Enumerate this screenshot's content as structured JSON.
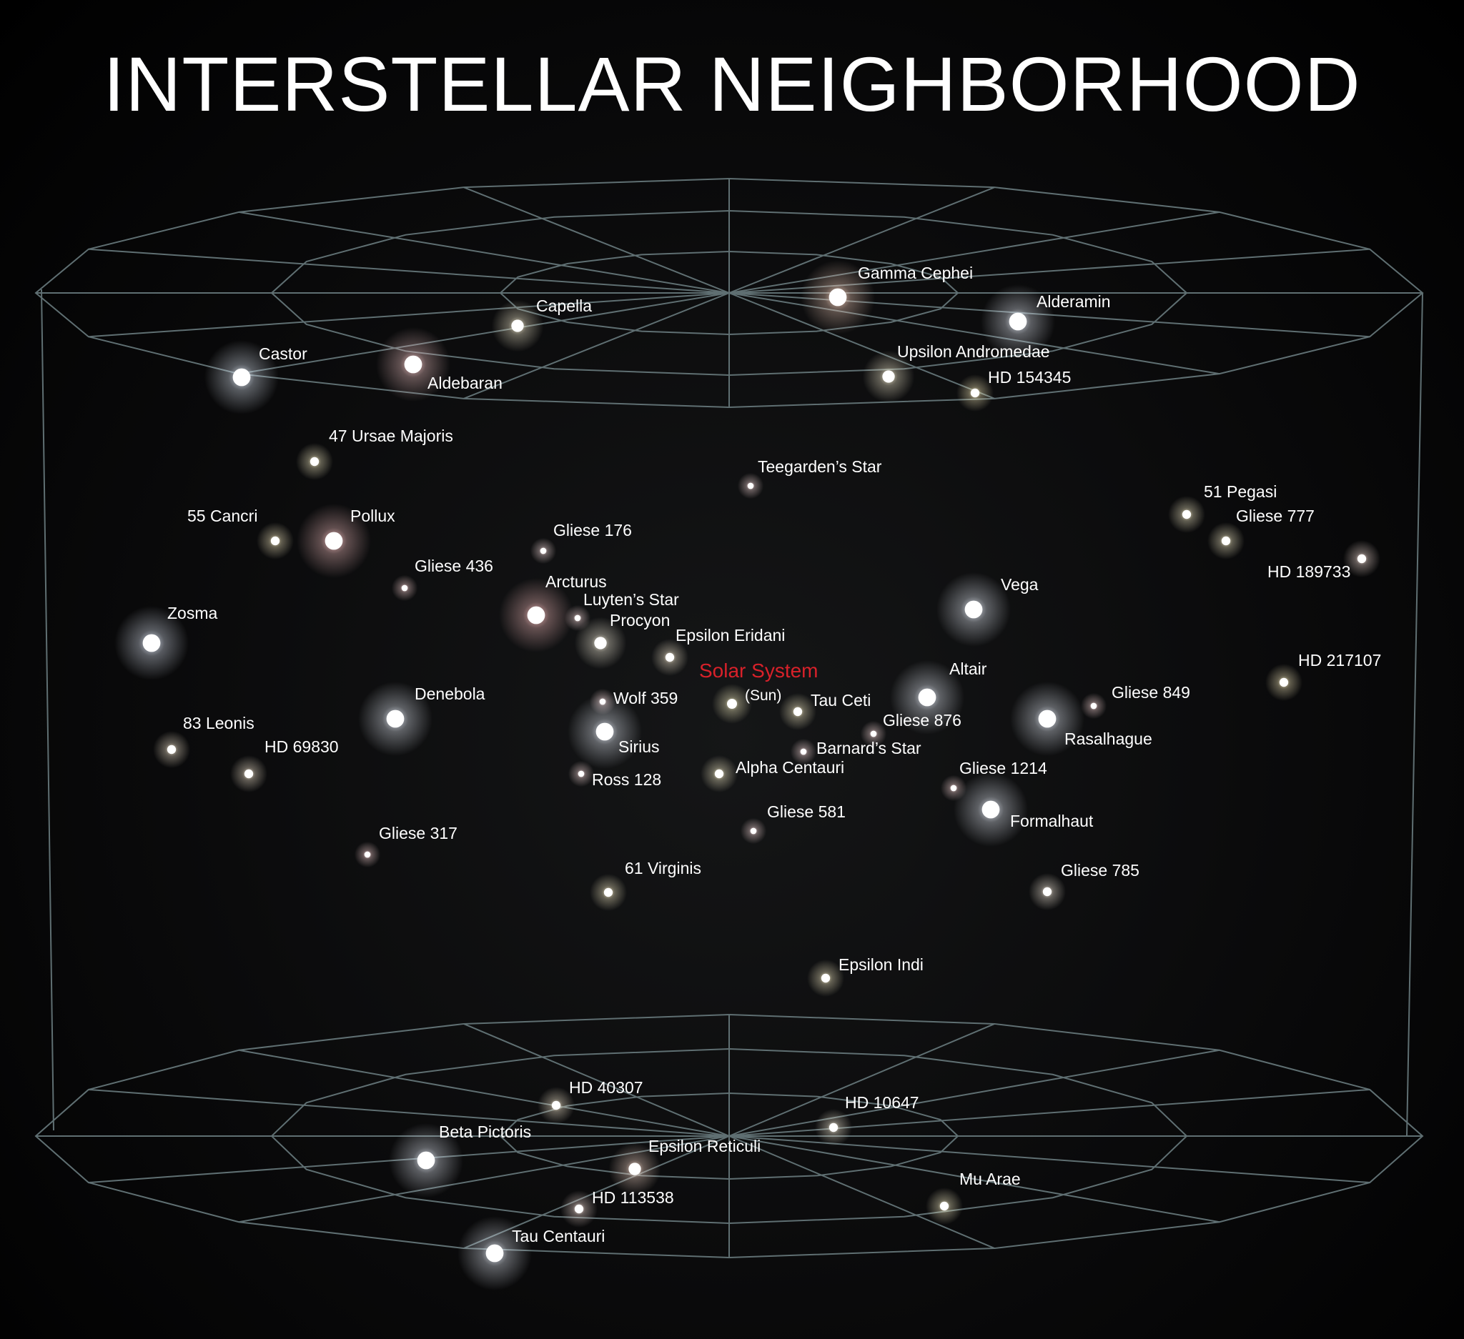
{
  "title": "INTERSTELLAR NEIGHBORHOOD",
  "colors": {
    "background": "#000000",
    "grid": "#5f6f72",
    "label": "#ffffff",
    "solar_system": "#d8212a"
  },
  "solar_system": {
    "label": "Solar System",
    "sublabel": "(Sun)",
    "color": "#fff7c8"
  },
  "stars": [
    {
      "id": "gamma-cephei",
      "name": "Gamma Cephei",
      "color": "#ffd8c4",
      "size": "large"
    },
    {
      "id": "capella",
      "name": "Capella",
      "color": "#fff6d8",
      "size": "medium"
    },
    {
      "id": "alderamin",
      "name": "Alderamin",
      "color": "#eef4ff",
      "size": "large"
    },
    {
      "id": "castor",
      "name": "Castor",
      "color": "#e8f2ff",
      "size": "large"
    },
    {
      "id": "aldebaran",
      "name": "Aldebaran",
      "color": "#ffd0d0",
      "size": "large"
    },
    {
      "id": "upsilon-andromedae",
      "name": "Upsilon Andromedae",
      "color": "#fff6d8",
      "size": "medium"
    },
    {
      "id": "hd-154345",
      "name": "HD 154345",
      "color": "#fff2c0",
      "size": "small"
    },
    {
      "id": "47-ursae-majoris",
      "name": "47 Ursae Majoris",
      "color": "#fff6cc",
      "size": "small"
    },
    {
      "id": "teegardens-star",
      "name": "Teegarden’s Star",
      "color": "#ffe0e0",
      "size": "tiny"
    },
    {
      "id": "51-pegasi",
      "name": "51 Pegasi",
      "color": "#fff6d0",
      "size": "small"
    },
    {
      "id": "gliese-777",
      "name": "Gliese 777",
      "color": "#fff6d0",
      "size": "small"
    },
    {
      "id": "hd-189733",
      "name": "HD 189733",
      "color": "#ffe8e0",
      "size": "small"
    },
    {
      "id": "55-cancri",
      "name": "55 Cancri",
      "color": "#fff2c8",
      "size": "small"
    },
    {
      "id": "pollux",
      "name": "Pollux",
      "color": "#ffc8c8",
      "size": "large"
    },
    {
      "id": "gliese-176",
      "name": "Gliese 176",
      "color": "#ffe4e4",
      "size": "tiny"
    },
    {
      "id": "gliese-436",
      "name": "Gliese 436",
      "color": "#ffd8d8",
      "size": "tiny"
    },
    {
      "id": "arcturus",
      "name": "Arcturus",
      "color": "#ffc4c4",
      "size": "large"
    },
    {
      "id": "luytens-star",
      "name": "Luyten’s Star",
      "color": "#ffe0e0",
      "size": "tiny"
    },
    {
      "id": "procyon",
      "name": "Procyon",
      "color": "#fff8e4",
      "size": "medium"
    },
    {
      "id": "vega",
      "name": "Vega",
      "color": "#eef4ff",
      "size": "large"
    },
    {
      "id": "zosma",
      "name": "Zosma",
      "color": "#e8f0ff",
      "size": "large"
    },
    {
      "id": "epsilon-eridani",
      "name": "Epsilon Eridani",
      "color": "#fff2d8",
      "size": "small"
    },
    {
      "id": "hd-217107",
      "name": "HD 217107",
      "color": "#fff2c4",
      "size": "small"
    },
    {
      "id": "altair",
      "name": "Altair",
      "color": "#eef4ff",
      "size": "large"
    },
    {
      "id": "denebola",
      "name": "Denebola",
      "color": "#eef4ff",
      "size": "large"
    },
    {
      "id": "wolf-359",
      "name": "Wolf 359",
      "color": "#ffe0e0",
      "size": "tiny"
    },
    {
      "id": "tau-ceti",
      "name": "Tau Ceti",
      "color": "#fff4cc",
      "size": "small"
    },
    {
      "id": "gliese-849",
      "name": "Gliese 849",
      "color": "#ffdcdc",
      "size": "tiny"
    },
    {
      "id": "gliese-876",
      "name": "Gliese 876",
      "color": "#ffe0e0",
      "size": "tiny"
    },
    {
      "id": "rasalhague",
      "name": "Rasalhague",
      "color": "#eef4ff",
      "size": "large"
    },
    {
      "id": "83-leonis",
      "name": "83 Leonis",
      "color": "#fff0d8",
      "size": "small"
    },
    {
      "id": "sirius",
      "name": "Sirius",
      "color": "#eef4ff",
      "size": "large"
    },
    {
      "id": "barnards-star",
      "name": "Barnard’s Star",
      "color": "#ffe0e0",
      "size": "tiny"
    },
    {
      "id": "hd-69830",
      "name": "HD 69830",
      "color": "#fff0d8",
      "size": "small"
    },
    {
      "id": "alpha-centauri",
      "name": "Alpha Centauri",
      "color": "#fff6d0",
      "size": "small"
    },
    {
      "id": "gliese-1214",
      "name": "Gliese 1214",
      "color": "#ffdcdc",
      "size": "tiny"
    },
    {
      "id": "ross-128",
      "name": "Ross 128",
      "color": "#ffe0e0",
      "size": "tiny"
    },
    {
      "id": "formalhaut",
      "name": "Formalhaut",
      "color": "#eef4ff",
      "size": "large"
    },
    {
      "id": "gliese-581",
      "name": "Gliese 581",
      "color": "#ffe0e0",
      "size": "tiny"
    },
    {
      "id": "gliese-317",
      "name": "Gliese 317",
      "color": "#ffd8d8",
      "size": "tiny"
    },
    {
      "id": "61-virginis",
      "name": "61 Virginis",
      "color": "#fff4cc",
      "size": "small"
    },
    {
      "id": "gliese-785",
      "name": "Gliese 785",
      "color": "#fff4e4",
      "size": "small"
    },
    {
      "id": "epsilon-indi",
      "name": "Epsilon Indi",
      "color": "#fff4cc",
      "size": "small"
    },
    {
      "id": "hd-40307",
      "name": "HD 40307",
      "color": "#fff2d8",
      "size": "small"
    },
    {
      "id": "hd-10647",
      "name": "HD 10647",
      "color": "#fff6e0",
      "size": "small"
    },
    {
      "id": "beta-pictoris",
      "name": "Beta Pictoris",
      "color": "#eef4ff",
      "size": "large"
    },
    {
      "id": "epsilon-reticuli",
      "name": "Epsilon Reticuli",
      "color": "#ffe0d0",
      "size": "medium"
    },
    {
      "id": "mu-arae",
      "name": "Mu Arae",
      "color": "#fff6cc",
      "size": "small"
    },
    {
      "id": "hd-113538",
      "name": "HD 113538",
      "color": "#ffe8e0",
      "size": "small"
    },
    {
      "id": "tau-centauri",
      "name": "Tau Centauri",
      "color": "#eef4ff",
      "size": "large"
    }
  ]
}
